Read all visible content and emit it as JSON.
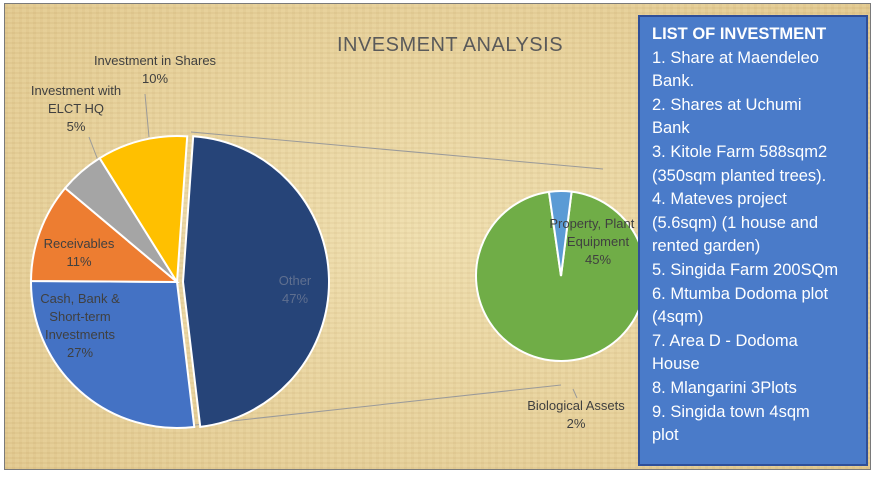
{
  "chart_data": [
    {
      "type": "pie",
      "title": "INVESMENT ANALYSIS",
      "slices": [
        {
          "label": "Other",
          "percent_label": "47%",
          "value": 47,
          "color": "#264478"
        },
        {
          "label": "Cash, Bank & Short-term Investments",
          "percent_label": "27%",
          "value": 27,
          "color": "#4472c4"
        },
        {
          "label": "Receivables",
          "percent_label": "11%",
          "value": 11,
          "color": "#ed7d31"
        },
        {
          "label": "Investment with ELCT HQ",
          "percent_label": "5%",
          "value": 5,
          "color": "#a5a5a5"
        },
        {
          "label": "Investment in Shares",
          "percent_label": "10%",
          "value": 10,
          "color": "#ffc000"
        }
      ],
      "exploded_slice": "Other"
    },
    {
      "type": "pie",
      "title": "",
      "slices": [
        {
          "label": "Property, Plant & Equipment",
          "percent_label": "45%",
          "value": 45,
          "color": "#70ad47"
        },
        {
          "label": "Biological Assets",
          "percent_label": "2%",
          "value": 2,
          "color": "#5b9bd5"
        }
      ]
    }
  ],
  "labels": {
    "other_name": "Other",
    "other_pct": "47%",
    "cash_name_1": "Cash, Bank &",
    "cash_name_2": "Short-term",
    "cash_name_3": "Investments",
    "cash_pct": "27%",
    "recv_name": "Receivables",
    "recv_pct": "11%",
    "elct_name_1": "Investment with",
    "elct_name_2": "ELCT HQ",
    "elct_pct": "5%",
    "shares_name": "Investment in Shares",
    "shares_pct": "10%",
    "ppe_name_1": "Property, Plant &",
    "ppe_name_2": "Equipment",
    "ppe_pct": "45%",
    "bio_name": "Biological Assets",
    "bio_pct": "2%"
  },
  "investment_list": {
    "heading": "LIST OF INVESTMENT",
    "lines": [
      "1. Share at Maendeleo",
      "Bank.",
      "2. Shares at Uchumi",
      "Bank",
      "3. Kitole Farm 588sqm2",
      "(350sqm planted trees).",
      "4. Mateves project",
      "(5.6sqm) (1 house and",
      "rented garden)",
      "5. Singida Farm 200SQm",
      "6. Mtumba Dodoma plot",
      "(4sqm)",
      "7. Area D - Dodoma",
      "House",
      "8. Mlangarini 3Plots",
      "9. Singida town 4sqm",
      "plot"
    ]
  }
}
